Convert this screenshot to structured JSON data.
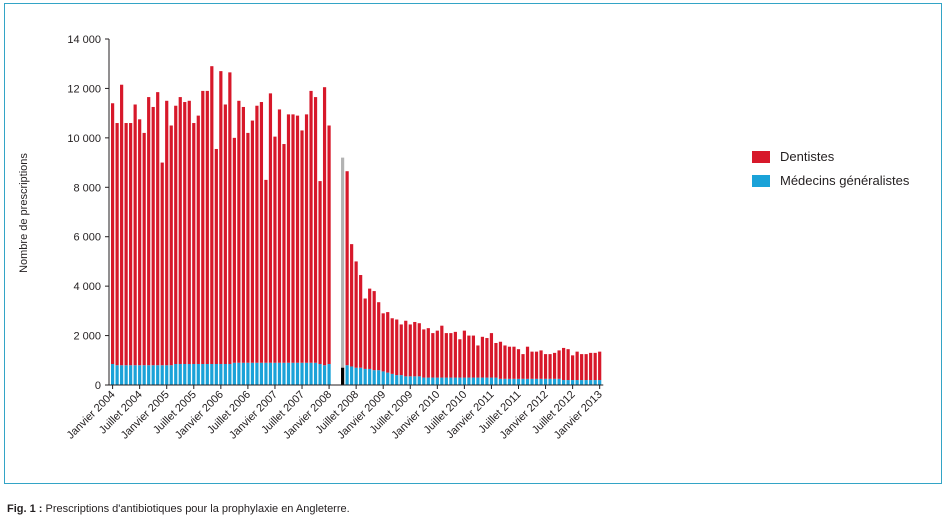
{
  "colors": {
    "dentistes": "#d7182a",
    "medecins": "#1aa2d8",
    "highlight_grey": "#b3b3b3",
    "highlight_black": "#000000",
    "frame": "#33a4c6"
  },
  "caption": {
    "label": "Fig. 1 :",
    "text": "Prescriptions d'antibiotiques pour la prophylaxie en Angleterre."
  },
  "chart_data": {
    "type": "bar",
    "stacked": true,
    "ylabel": "Nombre de prescriptions",
    "ylim": [
      0,
      14000
    ],
    "yticks": [
      0,
      2000,
      4000,
      6000,
      8000,
      10000,
      12000,
      14000
    ],
    "ytick_labels": [
      "0",
      "2 000",
      "4 000",
      "6 000",
      "8 000",
      "10 000",
      "12 000",
      "14 000"
    ],
    "grid": false,
    "legend_position": "right",
    "xtick_labels": [
      {
        "index": 0,
        "label": "Janvier 2004"
      },
      {
        "index": 6,
        "label": "Juillet 2004"
      },
      {
        "index": 12,
        "label": "Janvier 2005"
      },
      {
        "index": 18,
        "label": "Juillet 2005"
      },
      {
        "index": 24,
        "label": "Janvier 2006"
      },
      {
        "index": 30,
        "label": "Juillet 2006"
      },
      {
        "index": 36,
        "label": "Janvier 2007"
      },
      {
        "index": 42,
        "label": "Juillet 2007"
      },
      {
        "index": 48,
        "label": "Janvier 2008"
      },
      {
        "index": 54,
        "label": "Juillet 2008"
      },
      {
        "index": 60,
        "label": "Janvier 2009"
      },
      {
        "index": 66,
        "label": "Juillet 2009"
      },
      {
        "index": 72,
        "label": "Janvier 2010"
      },
      {
        "index": 78,
        "label": "Juillet 2010"
      },
      {
        "index": 84,
        "label": "Janvier 2011"
      },
      {
        "index": 90,
        "label": "Juillet 2011"
      },
      {
        "index": 96,
        "label": "Janvier 2012"
      },
      {
        "index": 102,
        "label": "Juillet 2012"
      },
      {
        "index": 108,
        "label": "Janvier 2013"
      }
    ],
    "highlight": {
      "index": 51,
      "total": 9200,
      "medecins": 700
    },
    "series": [
      {
        "name": "Dentistes",
        "key": "dentistes",
        "values": [
          10550,
          9800,
          11350,
          9800,
          9800,
          10550,
          9950,
          9400,
          10850,
          10450,
          11050,
          8200,
          10700,
          9700,
          10450,
          10800,
          10600,
          10650,
          9750,
          10050,
          11050,
          11050,
          12050,
          8700,
          11850,
          10500,
          11800,
          9100,
          10600,
          10350,
          9300,
          9800,
          10400,
          10550,
          7400,
          10900,
          9150,
          10250,
          8850,
          10050,
          10050,
          10000,
          9400,
          10050,
          11000,
          10750,
          7400,
          11250,
          9650,
          0,
          0,
          0,
          7850,
          4950,
          4300,
          3750,
          2850,
          3250,
          3200,
          2750,
          2350,
          2450,
          2250,
          2250,
          2050,
          2250,
          2100,
          2200,
          2150,
          1950,
          2000,
          1800,
          1900,
          2100,
          1800,
          1800,
          1850,
          1550,
          1900,
          1700,
          1700,
          1300,
          1650,
          1600,
          1800,
          1400,
          1500,
          1350,
          1300,
          1300,
          1200,
          1000,
          1300,
          1100,
          1100,
          1150,
          1000,
          1000,
          1050,
          1150,
          1300,
          1250,
          1000,
          1150,
          1050,
          1050,
          1100,
          1100,
          1150
        ]
      },
      {
        "name": "Médecins généralistes",
        "key": "medecins",
        "values": [
          850,
          800,
          800,
          800,
          800,
          800,
          800,
          800,
          800,
          800,
          800,
          800,
          800,
          800,
          850,
          850,
          850,
          850,
          850,
          850,
          850,
          850,
          850,
          850,
          850,
          850,
          850,
          900,
          900,
          900,
          900,
          900,
          900,
          900,
          900,
          900,
          900,
          900,
          900,
          900,
          900,
          900,
          900,
          900,
          900,
          900,
          850,
          800,
          850,
          0,
          0,
          0,
          800,
          750,
          700,
          700,
          650,
          650,
          600,
          600,
          550,
          500,
          450,
          400,
          400,
          350,
          350,
          350,
          350,
          300,
          300,
          300,
          300,
          300,
          300,
          300,
          300,
          300,
          300,
          300,
          300,
          300,
          300,
          300,
          300,
          300,
          250,
          250,
          250,
          250,
          250,
          250,
          250,
          250,
          250,
          250,
          250,
          250,
          250,
          250,
          200,
          200,
          200,
          200,
          200,
          200,
          200,
          200,
          200
        ]
      }
    ],
    "gaps": [
      49,
      50
    ]
  }
}
